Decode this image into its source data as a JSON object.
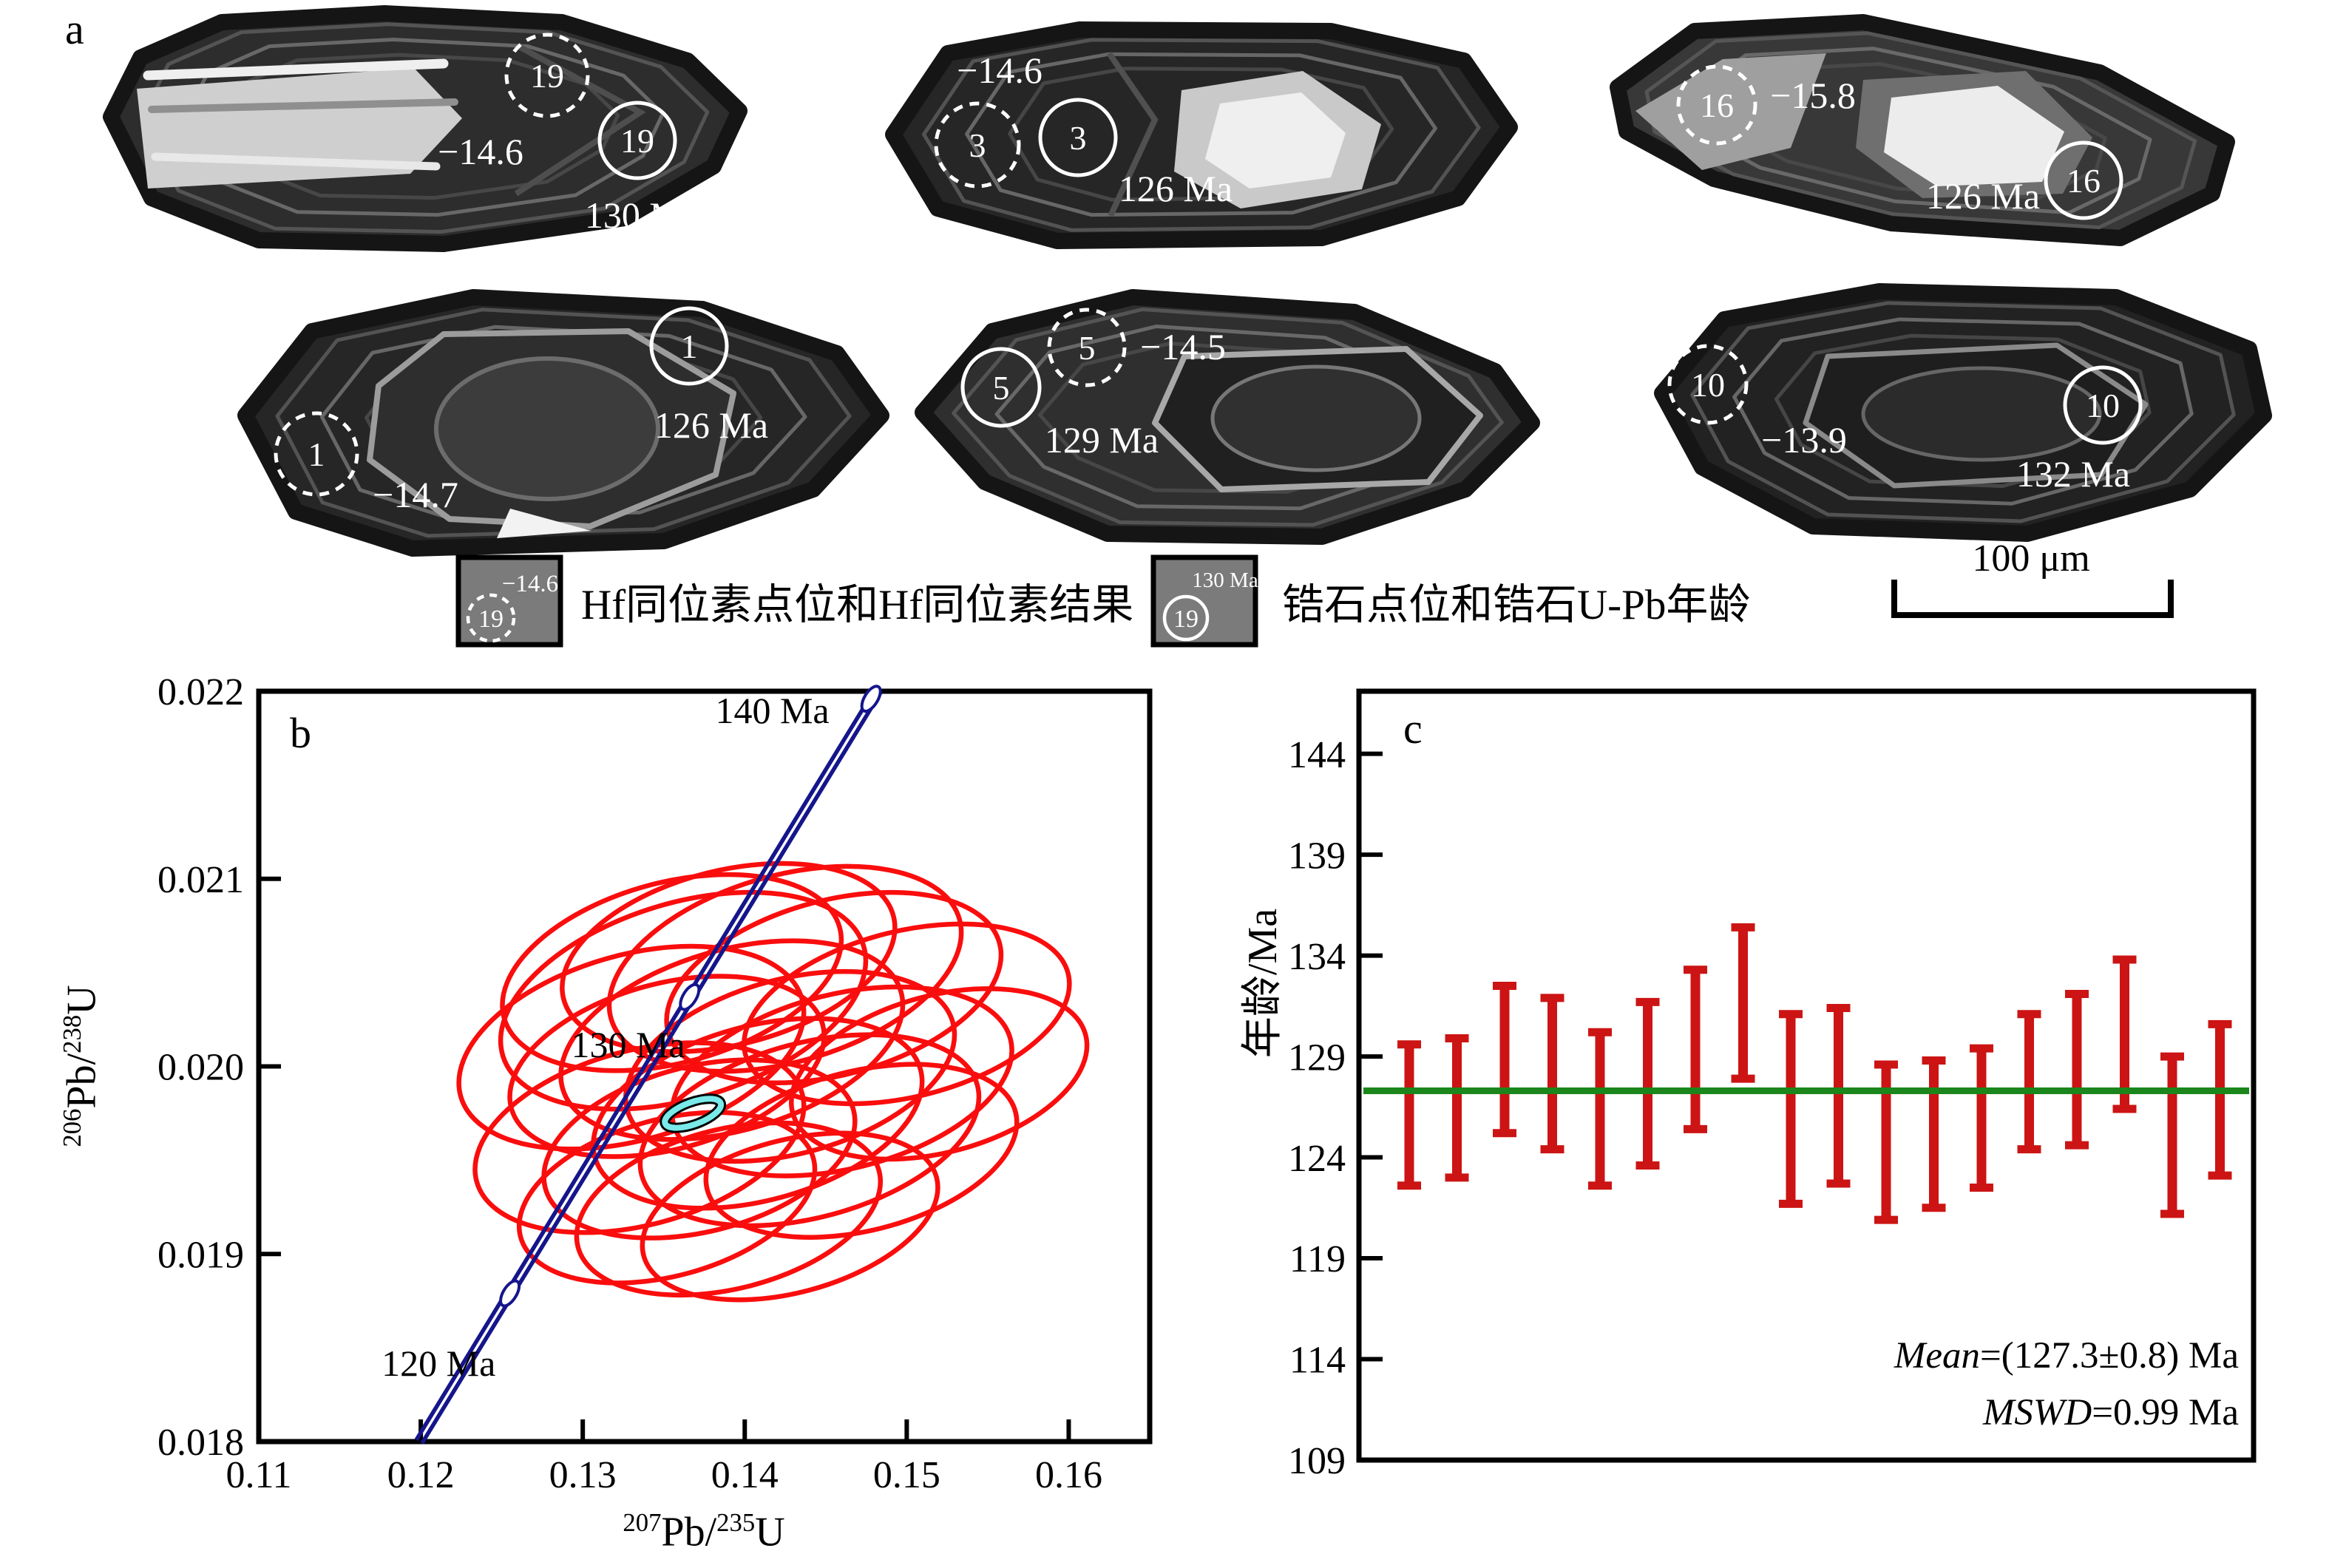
{
  "colors": {
    "ellipse_red": "#fa0d0d",
    "bar_red": "#cc1414",
    "concordia_navy": "#15158c",
    "mean_green": "#1b861b",
    "concordia_age_cyan": "#79e9e9",
    "legend_box_gray": "#7b7b7b",
    "axis_black": "#000000"
  },
  "panel_a": {
    "label": "a",
    "grains": [
      {
        "hf_spot": "19",
        "hf_value": "−14.6",
        "upb_spot": "19",
        "upb_age": "130 Ma"
      },
      {
        "hf_spot": "3",
        "hf_value": "−14.6",
        "upb_spot": "3",
        "upb_age": "126 Ma"
      },
      {
        "hf_spot": "16",
        "hf_value": "−15.8",
        "upb_spot": "16",
        "upb_age": "126 Ma"
      },
      {
        "hf_spot": "1",
        "hf_value": "−14.7",
        "upb_spot": "1",
        "upb_age": "126 Ma"
      },
      {
        "hf_spot": "5",
        "hf_value": "−14.5",
        "upb_spot": "5",
        "upb_age": "129 Ma"
      },
      {
        "hf_spot": "10",
        "hf_value": "−13.9",
        "upb_spot": "10",
        "upb_age": "132 Ma"
      }
    ],
    "legend": [
      {
        "spot": "19",
        "sup": "−14.6",
        "style": "dashed",
        "text": "Hf同位素点位和Hf同位素结果"
      },
      {
        "spot": "19",
        "sup": "130 Ma",
        "style": "solid",
        "text": "锆石点位和锆石U-Pb年龄"
      }
    ],
    "scale_bar": "100 μm"
  },
  "chart_data": [
    {
      "type": "scatter",
      "panel_label": "b",
      "xlabel_parts": {
        "sup1": "207",
        "base1": "Pb/",
        "sup2": "235",
        "base2": "U"
      },
      "ylabel_parts": {
        "sup1": "206",
        "base1": "Pb/",
        "sup2": "238",
        "base2": "U"
      },
      "xlim": [
        0.11,
        0.165
      ],
      "ylim": [
        0.018,
        0.022
      ],
      "xtick_values": [
        0.11,
        0.12,
        0.13,
        0.14,
        0.15,
        0.16
      ],
      "xtick_labels": [
        "0.11",
        "0.12",
        "0.13",
        "0.14",
        "0.15",
        "0.16"
      ],
      "ytick_values": [
        0.018,
        0.019,
        0.02,
        0.021,
        0.022
      ],
      "ytick_labels": [
        "0.018",
        "0.019",
        "0.020",
        "0.021",
        "0.022"
      ],
      "grid": false,
      "concordia": {
        "start": [
          0.1199,
          0.018
        ],
        "end": [
          0.1482,
          0.022
        ],
        "markers": [
          [
            0.1255,
            0.01879
          ],
          [
            0.1366,
            0.02037
          ],
          [
            0.1478,
            0.02196
          ]
        ],
        "age_labels": [
          {
            "text": "120 Ma",
            "x": 0.1211,
            "y": 0.01835
          },
          {
            "text": "130 Ma",
            "x": 0.1328,
            "y": 0.02005
          },
          {
            "text": "140 Ma",
            "x": 0.1417,
            "y": 0.02183
          }
        ]
      },
      "ellipses": [
        [
          0.133,
          0.0201,
          240,
          125,
          -16
        ],
        [
          0.1355,
          0.0205,
          235,
          122,
          -15
        ],
        [
          0.139,
          0.02058,
          230,
          118,
          -14
        ],
        [
          0.1425,
          0.02052,
          245,
          126,
          -16
        ],
        [
          0.1455,
          0.02042,
          232,
          118,
          -15
        ],
        [
          0.15,
          0.02028,
          225,
          112,
          -14
        ],
        [
          0.1352,
          0.02,
          218,
          112,
          -15
        ],
        [
          0.1392,
          0.02014,
          238,
          122,
          -16
        ],
        [
          0.1428,
          0.02,
          228,
          118,
          -15
        ],
        [
          0.146,
          0.01992,
          235,
          118,
          -14
        ],
        [
          0.152,
          0.01996,
          205,
          106,
          -15
        ],
        [
          0.1335,
          0.01962,
          228,
          118,
          -15
        ],
        [
          0.1372,
          0.01956,
          215,
          112,
          -14
        ],
        [
          0.1408,
          0.01975,
          228,
          118,
          -15
        ],
        [
          0.144,
          0.01966,
          235,
          118,
          -15
        ],
        [
          0.1472,
          0.01955,
          215,
          108,
          -14
        ],
        [
          0.1352,
          0.0193,
          205,
          106,
          -15
        ],
        [
          0.139,
          0.01924,
          210,
          108,
          -14
        ],
        [
          0.1428,
          0.0192,
          205,
          103,
          -15
        ],
        [
          0.1362,
          0.02035,
          255,
          132,
          -17
        ]
      ],
      "concordia_age_ellipse": [
        0.1368,
        0.01975,
        40,
        15,
        -20
      ]
    },
    {
      "type": "error-bars",
      "panel_label": "c",
      "ylabel": "年龄/Ma",
      "ylim": [
        109,
        147.1
      ],
      "ytick_values": [
        144,
        139,
        134,
        129,
        124,
        119,
        114,
        109
      ],
      "ytick_labels": [
        "144",
        "139",
        "134",
        "129",
        "124",
        "119",
        "114",
        "109"
      ],
      "mean_age": 127.3,
      "bars": [
        [
          122.6,
          129.6
        ],
        [
          123.0,
          129.9
        ],
        [
          125.2,
          132.5
        ],
        [
          124.4,
          131.9
        ],
        [
          122.6,
          130.2
        ],
        [
          123.6,
          131.7
        ],
        [
          125.4,
          133.3
        ],
        [
          127.9,
          135.4
        ],
        [
          121.7,
          131.1
        ],
        [
          122.7,
          131.4
        ],
        [
          120.9,
          128.6
        ],
        [
          121.5,
          128.8
        ],
        [
          122.5,
          129.4
        ],
        [
          124.4,
          131.1
        ],
        [
          124.6,
          132.1
        ],
        [
          126.4,
          133.8
        ],
        [
          121.2,
          129.0
        ],
        [
          123.1,
          130.6
        ]
      ],
      "annotations": {
        "mean_label": "Mean",
        "mean_rest": "=(127.3±0.8) Ma",
        "mswd_label": "MSWD",
        "mswd_rest": "=0.99 Ma"
      }
    }
  ]
}
